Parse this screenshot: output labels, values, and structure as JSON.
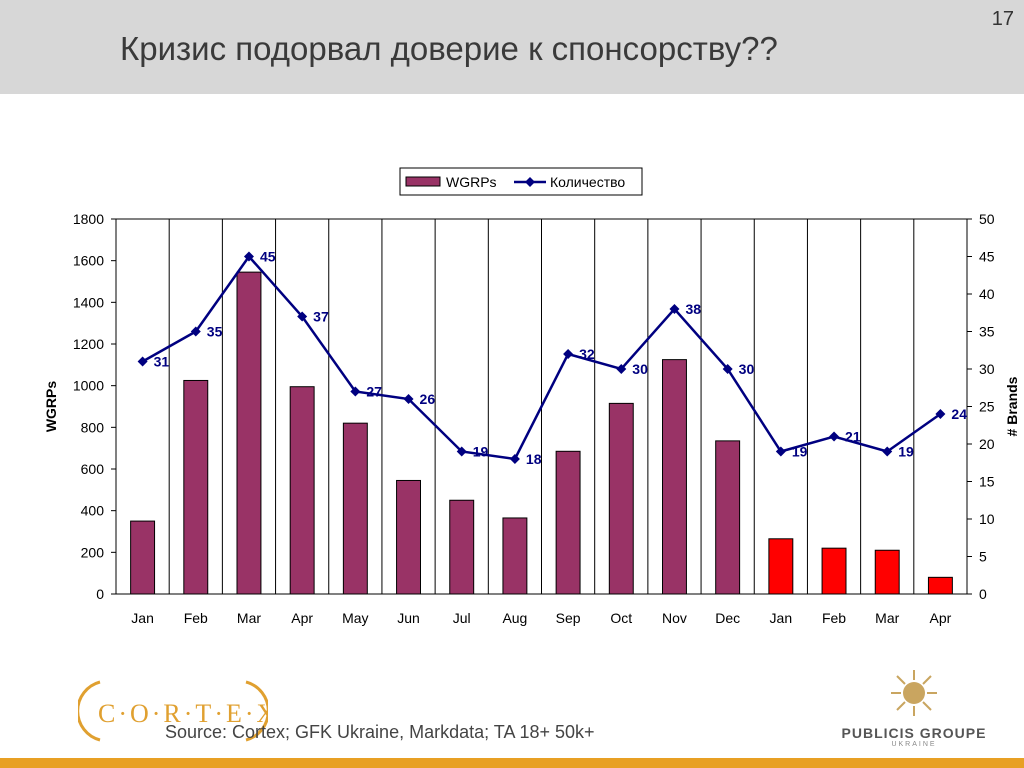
{
  "page": {
    "title": "Кризис подорвал доверие к спонсорству??",
    "page_number": "17",
    "source": "Source: Cortex; GFK Ukraine, Markdata; TA 18+ 50k+",
    "cortex_logo_text": "C·O·R·T·E·X",
    "publicis_name": "PUBLICIS GROUPE",
    "publicis_sub": "UKRAINE"
  },
  "colors": {
    "bar_main": "#993366",
    "bar_highlight": "#ff0000",
    "line": "#000080",
    "header_bg": "#d7d7d7",
    "accent": "#e8a024"
  },
  "chart_data": {
    "type": "bar",
    "categories": [
      "Jan",
      "Feb",
      "Mar",
      "Apr",
      "May",
      "Jun",
      "Jul",
      "Aug",
      "Sep",
      "Oct",
      "Nov",
      "Dec",
      "Jan",
      "Feb",
      "Mar",
      "Apr"
    ],
    "series": [
      {
        "name": "WGRPs",
        "type": "bar",
        "axis": "left",
        "values": [
          350,
          1025,
          1545,
          995,
          820,
          545,
          450,
          365,
          685,
          915,
          1125,
          735,
          265,
          220,
          210,
          80
        ],
        "highlight_from_index": 12
      },
      {
        "name": "Количество",
        "type": "line",
        "axis": "right",
        "values": [
          31,
          35,
          45,
          37,
          27,
          26,
          19,
          18,
          32,
          30,
          38,
          30,
          19,
          21,
          19,
          24
        ]
      }
    ],
    "ylabel": "WGRPs",
    "ylabel_right": "# Brands",
    "ylim": [
      0,
      1800
    ],
    "yticks": [
      0,
      200,
      400,
      600,
      800,
      1000,
      1200,
      1400,
      1600,
      1800
    ],
    "ylim_right": [
      0,
      50
    ],
    "yticks_right": [
      0,
      5,
      10,
      15,
      20,
      25,
      30,
      35,
      40,
      45,
      50
    ],
    "grid": "vertical lines between categories",
    "legend_position": "top"
  }
}
